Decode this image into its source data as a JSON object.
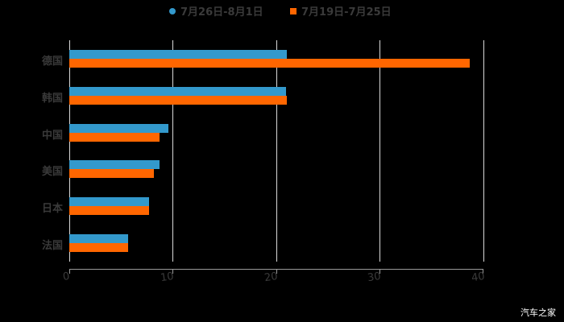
{
  "chart_data": {
    "type": "bar",
    "orientation": "horizontal",
    "title": "",
    "xlabel": "",
    "ylabel": "",
    "categories": [
      "德国",
      "韩国",
      "中国",
      "美国",
      "日本",
      "法国"
    ],
    "series": [
      {
        "name": "7月26日-8月1日",
        "color": "#3399cc",
        "values": [
          21.0,
          20.9,
          9.6,
          8.7,
          7.7,
          5.7
        ]
      },
      {
        "name": "7月19日-7月25日",
        "color": "#ff6600",
        "values": [
          38.7,
          21.0,
          8.7,
          8.2,
          7.7,
          5.7
        ]
      }
    ],
    "xlim": [
      0,
      40
    ],
    "xticks": [
      "0",
      "10",
      "20",
      "30",
      "40"
    ],
    "grid": true,
    "legend_position": "top"
  },
  "legend": {
    "series_1": "7月26日-8月1日",
    "series_2": "7月19日-7月25日"
  },
  "categories": {
    "c0": "德国",
    "c1": "韩国",
    "c2": "中国",
    "c3": "美国",
    "c4": "日本",
    "c5": "法国"
  },
  "axis": {
    "t0": "0",
    "t1": "10",
    "t2": "20",
    "t3": "30",
    "t4": "40"
  },
  "watermark": "汽车之家"
}
